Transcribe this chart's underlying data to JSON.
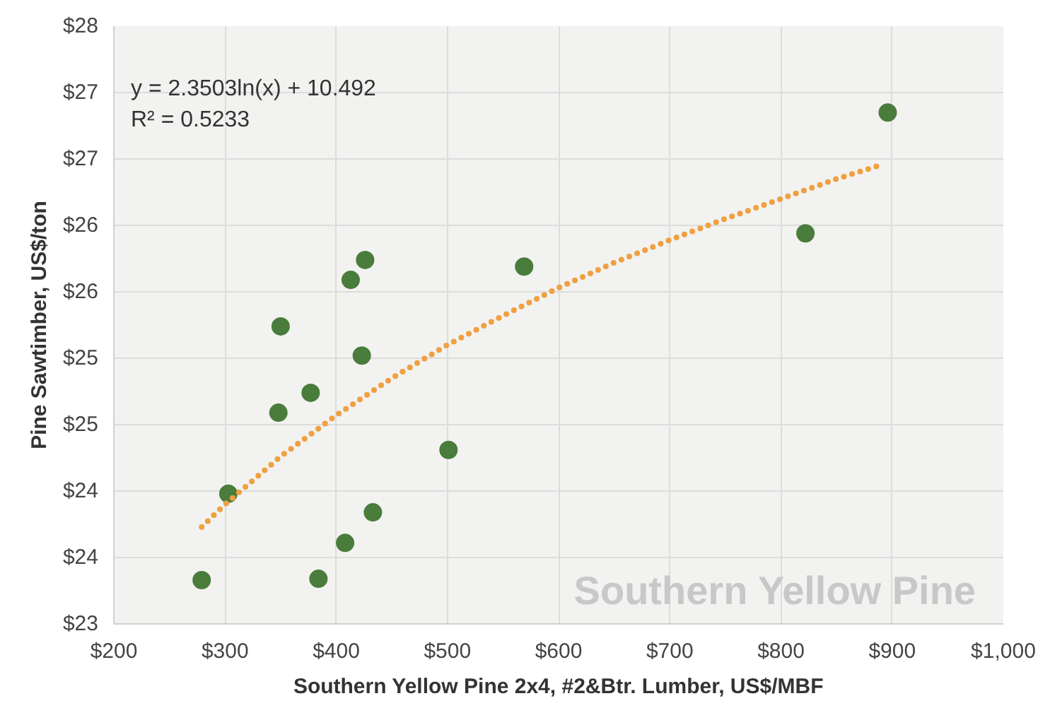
{
  "chart_data": {
    "type": "scatter",
    "xlabel": "Southern Yellow Pine 2x4, #2&Btr. Lumber, US$/MBF",
    "ylabel": "Pine Sawtimber, US$/ton",
    "xlim": [
      200,
      1000
    ],
    "xticks": [
      {
        "value": 200,
        "label": "$200"
      },
      {
        "value": 300,
        "label": "$300"
      },
      {
        "value": 400,
        "label": "$400"
      },
      {
        "value": 500,
        "label": "$500"
      },
      {
        "value": 600,
        "label": "$600"
      },
      {
        "value": 700,
        "label": "$700"
      },
      {
        "value": 800,
        "label": "$800"
      },
      {
        "value": 900,
        "label": "$900"
      },
      {
        "value": 1000,
        "label": "$1,000"
      }
    ],
    "ylim": [
      23,
      27.5
    ],
    "yticks": [
      {
        "value": 23,
        "label": "$23"
      },
      {
        "value": 23.5,
        "label": "$24"
      },
      {
        "value": 24,
        "label": "$24"
      },
      {
        "value": 24.5,
        "label": "$25"
      },
      {
        "value": 25,
        "label": "$25"
      },
      {
        "value": 25.5,
        "label": "$26"
      },
      {
        "value": 26,
        "label": "$26"
      },
      {
        "value": 26.5,
        "label": "$27"
      },
      {
        "value": 27,
        "label": "$27"
      },
      {
        "value": 27.5,
        "label": "$28"
      }
    ],
    "grid": true,
    "series": [
      {
        "marker": "circle",
        "color": "#4a7c3b",
        "x": [
          279,
          303,
          350,
          348,
          377,
          384,
          408,
          413,
          426,
          423,
          433,
          501,
          569,
          822,
          896
        ],
        "values": [
          23.33,
          23.98,
          25.24,
          24.59,
          24.74,
          23.34,
          23.61,
          25.59,
          25.74,
          25.02,
          23.84,
          24.31,
          25.69,
          25.94,
          26.85
        ]
      },
      {
        "type": "line",
        "color": "#f0a040",
        "line_style": "dotted",
        "x": [
          279,
          300,
          350,
          400,
          450,
          500,
          550,
          600,
          650,
          700,
          750,
          800,
          850,
          892
        ],
        "values": [
          23.73,
          23.9,
          24.26,
          24.57,
          24.85,
          25.1,
          25.32,
          25.53,
          25.72,
          25.89,
          26.05,
          26.2,
          26.35,
          26.46
        ]
      }
    ],
    "annotations": [
      "y = 2.3503ln(x) + 10.492",
      "R² = 0.5233",
      "Southern Yellow Pine"
    ]
  }
}
